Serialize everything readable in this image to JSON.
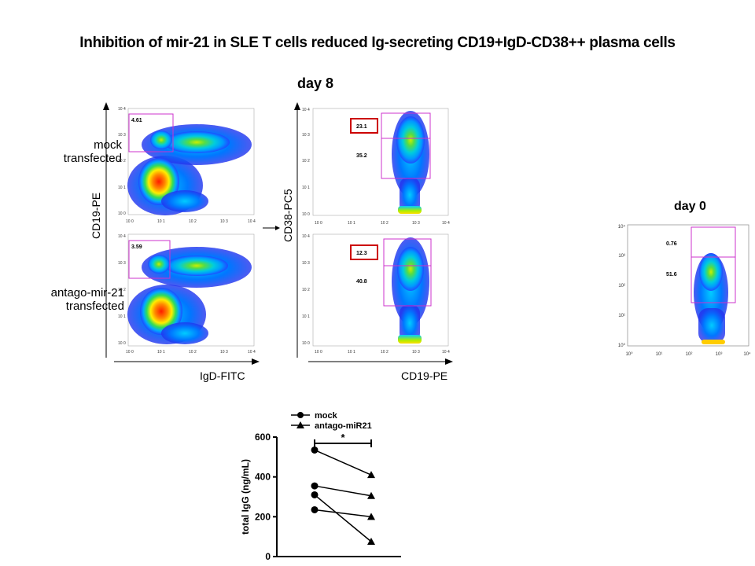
{
  "title": "Inhibition of mir-21 in SLE T cells reduced Ig-secreting CD19+IgD-CD38++ plasma cells",
  "day8_label": "day 8",
  "day0_label": "day 0",
  "row_labels": {
    "mock": [
      "mock",
      "transfected"
    ],
    "antago": [
      "antago-mir-21",
      "transfected"
    ]
  },
  "axis_labels": {
    "cd19_pe_y": "CD19-PE",
    "igd_fitc_x": "IgD-FITC",
    "cd38_pc5_y": "CD38-PC5",
    "cd19_pe_x": "CD19-PE"
  },
  "flow_tick_labels": [
    "10 0",
    "10 1",
    "10 2",
    "10 3",
    "10 4"
  ],
  "day0_tick_labels": [
    "10⁰",
    "10¹",
    "10²",
    "10³",
    "10⁴"
  ],
  "gates": {
    "mock_igd": "4.61",
    "antago_igd": "3.59",
    "mock_cd38_high": "23.1",
    "mock_cd38_mid": "35.2",
    "antago_cd38_high": "12.3",
    "antago_cd38_mid": "40.8",
    "day0_high": "0.76",
    "day0_mid": "51.6"
  },
  "colors": {
    "gate": "#cc33cc",
    "highlight_box": "#cc0000",
    "density_low": "#3355ff",
    "density_high": "#ff2200"
  },
  "chart_data": {
    "type": "line",
    "ylabel": "total IgG (ng/mL)",
    "ylim": [
      0,
      600
    ],
    "yticks": [
      "0",
      "200",
      "400",
      "600"
    ],
    "categories": [
      "mock",
      "antago-miR21"
    ],
    "legend": [
      {
        "name": "mock",
        "marker": "circle"
      },
      {
        "name": "antago-miR21",
        "marker": "triangle"
      }
    ],
    "significance": "*",
    "pairs": [
      [
        535,
        410
      ],
      [
        355,
        305
      ],
      [
        310,
        75
      ],
      [
        235,
        200
      ]
    ]
  }
}
